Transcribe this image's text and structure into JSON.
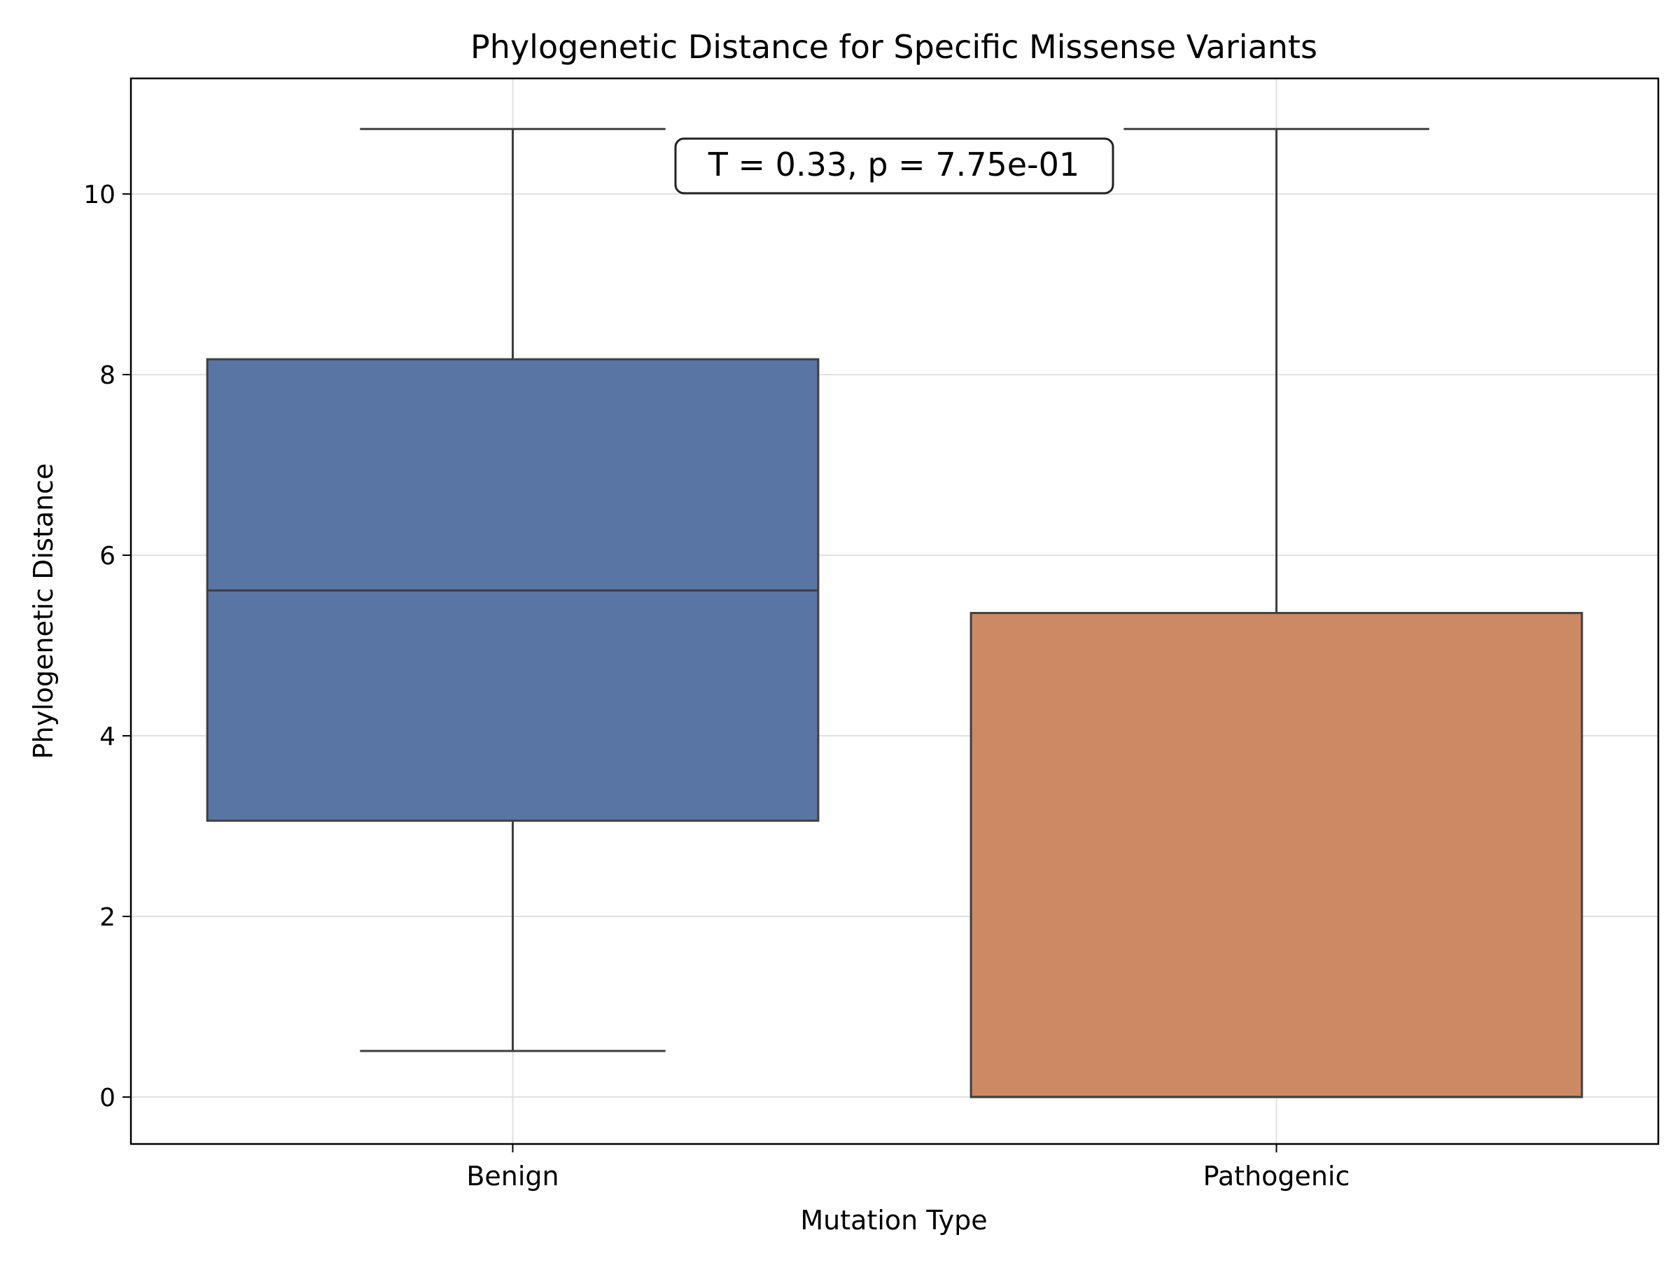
{
  "chart_data": {
    "type": "box",
    "title": "Phylogenetic Distance for Specific Missense Variants",
    "xlabel": "Mutation Type",
    "ylabel": "Phylogenetic Distance",
    "categories": [
      "Benign",
      "Pathogenic"
    ],
    "ylim": [
      -0.52,
      11.28
    ],
    "yticks": [
      0,
      2,
      4,
      6,
      8,
      10
    ],
    "grid": true,
    "series": [
      {
        "category": "Benign",
        "color": "#5975a4",
        "whisker_low": 0.51,
        "q1": 3.06,
        "median": 5.61,
        "q3": 8.17,
        "whisker_high": 10.72
      },
      {
        "category": "Pathogenic",
        "color": "#cc8963",
        "whisker_low": 0.0,
        "q1": 0.0,
        "median": 0.0,
        "q3": 5.36,
        "whisker_high": 10.72
      }
    ],
    "annotation": "T = 0.33, p = 7.75e-01"
  }
}
